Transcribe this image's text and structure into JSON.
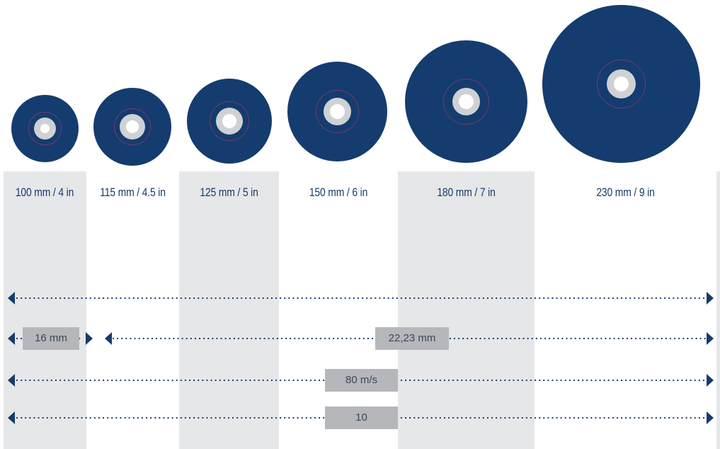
{
  "colors": {
    "disc": "#153c6e",
    "hub": "#cfd1d4",
    "ring": "#d23a6e",
    "label": "#153c6e",
    "column": "#e6e7e9",
    "box": "#b5b7ba",
    "box_text": "#3c4757",
    "arrow": "#153c6e"
  },
  "sizes": [
    {
      "label": "100 mm / 4 in"
    },
    {
      "label": "115 mm / 4.5 in"
    },
    {
      "label": "125 mm / 5 in"
    },
    {
      "label": "150 mm / 6 in"
    },
    {
      "label": "180 mm / 7 in"
    },
    {
      "label": "230 mm / 9 in"
    }
  ],
  "specs": {
    "bore_small": "16 mm",
    "bore_large": "22,23 mm",
    "speed": "80 m/s",
    "pack": "10"
  }
}
